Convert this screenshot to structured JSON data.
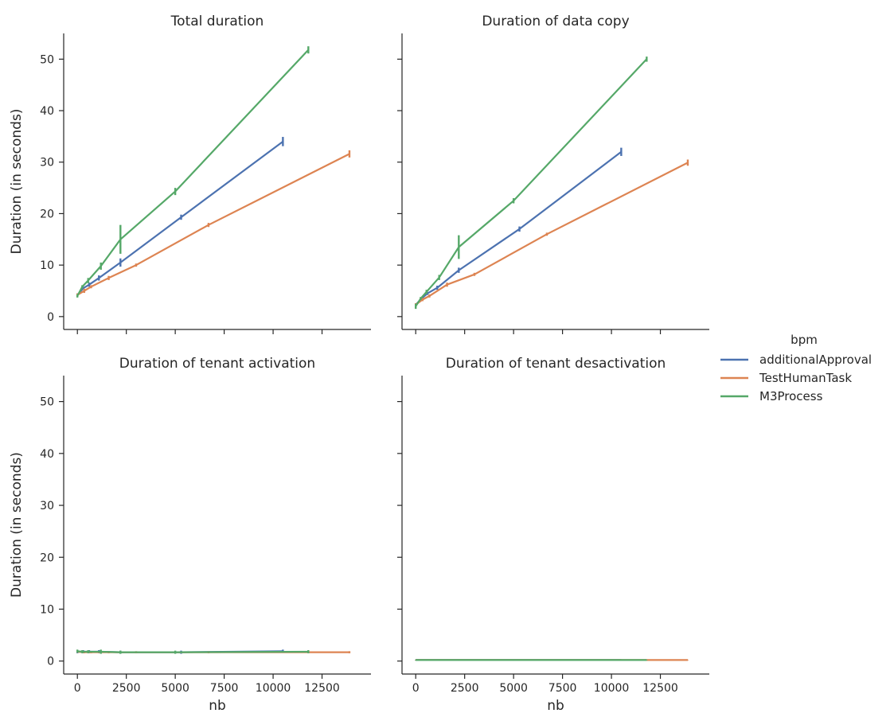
{
  "chart_data": {
    "type": "line",
    "legend": {
      "title": "bpm",
      "placement": "right"
    },
    "colors": {
      "additionalApproval": "#4c72b0",
      "TestHumanTask": "#dd8452",
      "M3Process": "#55a868"
    },
    "shared_axes": {
      "xlabel": "nb",
      "ylabel": "Duration (in seconds)",
      "xlim": [
        -700,
        15000
      ],
      "ylim": [
        -2.5,
        55
      ],
      "xticks": [
        0,
        2500,
        5000,
        7500,
        10000,
        12500
      ],
      "yticks": [
        0,
        10,
        20,
        30,
        40,
        50
      ]
    },
    "panels": [
      {
        "title": "Total duration",
        "series": [
          {
            "name": "additionalApproval",
            "x": [
              0,
              300,
              600,
              1100,
              2200,
              5300,
              10500
            ],
            "y": [
              4.2,
              5.5,
              6.2,
              7.5,
              10.5,
              19.3,
              34.0
            ],
            "err": [
              0.3,
              0.3,
              0.4,
              0.5,
              0.8,
              0.5,
              0.9
            ]
          },
          {
            "name": "TestHumanTask",
            "x": [
              0,
              350,
              700,
              1600,
              3000,
              6700,
              13900
            ],
            "y": [
              4.2,
              5.0,
              5.8,
              7.5,
              10.0,
              17.8,
              31.6
            ],
            "err": [
              0.3,
              0.4,
              0.3,
              0.4,
              0.3,
              0.4,
              0.7
            ]
          },
          {
            "name": "M3Process",
            "x": [
              0,
              250,
              550,
              1200,
              2200,
              5000,
              11800
            ],
            "y": [
              4.0,
              5.8,
              7.0,
              9.8,
              15.0,
              24.3,
              51.8
            ],
            "err": [
              0.3,
              0.3,
              0.5,
              0.7,
              2.8,
              0.7,
              0.7
            ]
          }
        ]
      },
      {
        "title": "Duration of data copy",
        "series": [
          {
            "name": "additionalApproval",
            "x": [
              0,
              300,
              600,
              1100,
              2200,
              5300,
              10500
            ],
            "y": [
              2.3,
              3.5,
              4.5,
              5.6,
              9.0,
              17.0,
              32.0
            ],
            "err": [
              0.3,
              0.3,
              0.3,
              0.4,
              0.5,
              0.5,
              0.8
            ]
          },
          {
            "name": "TestHumanTask",
            "x": [
              0,
              350,
              700,
              1600,
              3000,
              6700,
              13900
            ],
            "y": [
              2.3,
              3.3,
              4.0,
              6.2,
              8.2,
              16.0,
              29.9
            ],
            "err": [
              0.3,
              0.3,
              0.3,
              0.4,
              0.3,
              0.3,
              0.6
            ]
          },
          {
            "name": "M3Process",
            "x": [
              0,
              250,
              550,
              1200,
              2200,
              5000,
              11800
            ],
            "y": [
              2.0,
              3.5,
              4.8,
              7.6,
              13.5,
              22.5,
              50.0
            ],
            "err": [
              0.5,
              0.3,
              0.4,
              0.5,
              2.3,
              0.5,
              0.5
            ]
          }
        ]
      },
      {
        "title": "Duration of tenant activation",
        "series": [
          {
            "name": "additionalApproval",
            "x": [
              0,
              300,
              600,
              1100,
              2200,
              5300,
              10500
            ],
            "y": [
              1.8,
              1.8,
              1.8,
              1.8,
              1.7,
              1.7,
              1.9
            ],
            "err": [
              0.3,
              0.3,
              0.3,
              0.3,
              0.3,
              0.3,
              0.3
            ]
          },
          {
            "name": "TestHumanTask",
            "x": [
              0,
              350,
              700,
              1600,
              3000,
              6700,
              13900
            ],
            "y": [
              1.8,
              1.7,
              1.7,
              1.7,
              1.7,
              1.7,
              1.7
            ],
            "err": [
              0.2,
              0.2,
              0.2,
              0.2,
              0.2,
              0.2,
              0.2
            ]
          },
          {
            "name": "M3Process",
            "x": [
              0,
              250,
              550,
              1200,
              2200,
              5000,
              11800
            ],
            "y": [
              1.9,
              1.8,
              1.8,
              1.8,
              1.7,
              1.7,
              1.8
            ],
            "err": [
              0.3,
              0.3,
              0.3,
              0.4,
              0.3,
              0.3,
              0.3
            ]
          }
        ]
      },
      {
        "title": "Duration of tenant desactivation",
        "series": [
          {
            "name": "additionalApproval",
            "x": [
              0,
              300,
              600,
              1100,
              2200,
              5300,
              10500
            ],
            "y": [
              0.2,
              0.2,
              0.2,
              0.2,
              0.2,
              0.2,
              0.2
            ],
            "err": [
              0.05,
              0.05,
              0.05,
              0.05,
              0.05,
              0.05,
              0.05
            ]
          },
          {
            "name": "TestHumanTask",
            "x": [
              0,
              350,
              700,
              1600,
              3000,
              6700,
              13900
            ],
            "y": [
              0.2,
              0.2,
              0.2,
              0.2,
              0.2,
              0.2,
              0.2
            ],
            "err": [
              0.05,
              0.05,
              0.05,
              0.05,
              0.05,
              0.05,
              0.05
            ]
          },
          {
            "name": "M3Process",
            "x": [
              0,
              250,
              550,
              1200,
              2200,
              5000,
              11800
            ],
            "y": [
              0.2,
              0.2,
              0.2,
              0.2,
              0.2,
              0.2,
              0.2
            ],
            "err": [
              0.05,
              0.05,
              0.05,
              0.05,
              0.05,
              0.05,
              0.05
            ]
          }
        ]
      }
    ]
  }
}
